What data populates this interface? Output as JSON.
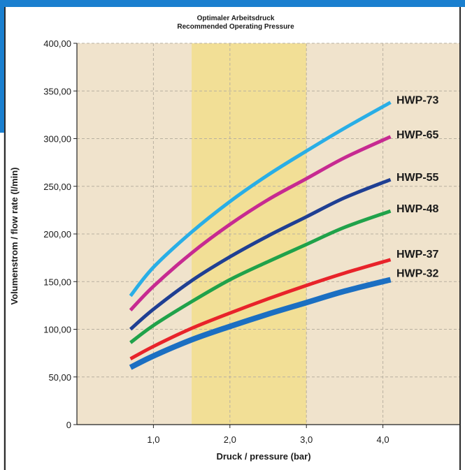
{
  "chart_data": {
    "type": "line",
    "title": "Optimaler Arbeitsdruck",
    "subtitle": "Recommended Operating Pressure",
    "xlabel": "Druck / pressure (bar)",
    "ylabel": "Volumenstrom / flow rate (l/min)",
    "xlim": [
      0,
      5.0
    ],
    "ylim": [
      0,
      400
    ],
    "x_ticks": [
      1.0,
      2.0,
      3.0,
      4.0
    ],
    "x_tick_labels": [
      "1,0",
      "2,0",
      "3,0",
      "4,0"
    ],
    "y_ticks": [
      0,
      50,
      100,
      150,
      200,
      250,
      300,
      350,
      400
    ],
    "y_tick_labels": [
      "0",
      "50,00",
      "100,00",
      "150,00",
      "200,00",
      "250,00",
      "300,00",
      "350,00",
      "400,00"
    ],
    "grid": true,
    "highlight_band": {
      "x_range": [
        1.5,
        3.0
      ],
      "color": "#f2df96"
    },
    "background_color": "#f0e3cc",
    "series": [
      {
        "name": "HWP-73",
        "color": "#29aee6",
        "width": 5,
        "x": [
          0.7,
          1.0,
          1.5,
          2.0,
          2.5,
          3.0,
          3.5,
          4.1
        ],
        "y": [
          135,
          165,
          202,
          234,
          262,
          287,
          311,
          338
        ]
      },
      {
        "name": "HWP-65",
        "color": "#c72a91",
        "width": 5,
        "x": [
          0.7,
          1.0,
          1.5,
          2.0,
          2.5,
          3.0,
          3.5,
          4.1
        ],
        "y": [
          120,
          145,
          180,
          210,
          236,
          258,
          280,
          302
        ]
      },
      {
        "name": "HWP-55",
        "color": "#1f3f93",
        "width": 5,
        "x": [
          0.7,
          1.0,
          1.5,
          2.0,
          2.5,
          3.0,
          3.5,
          4.1
        ],
        "y": [
          100,
          121,
          151,
          176,
          198,
          218,
          238,
          257
        ]
      },
      {
        "name": "HWP-48",
        "color": "#20a24a",
        "width": 5,
        "x": [
          0.7,
          1.0,
          1.5,
          2.0,
          2.5,
          3.0,
          3.5,
          4.1
        ],
        "y": [
          86,
          104,
          129,
          152,
          171,
          189,
          207,
          224
        ]
      },
      {
        "name": "HWP-37",
        "color": "#e8232a",
        "width": 5,
        "x": [
          0.7,
          1.0,
          1.5,
          2.0,
          2.5,
          3.0,
          3.5,
          4.1
        ],
        "y": [
          69,
          82,
          101,
          117,
          132,
          146,
          159,
          173
        ]
      },
      {
        "name": "HWP-32",
        "color": "#1b6fc2",
        "width": 8,
        "x": [
          0.7,
          1.0,
          1.5,
          2.0,
          2.5,
          3.0,
          3.5,
          4.1
        ],
        "y": [
          60,
          72,
          89,
          103,
          116,
          128,
          140,
          152
        ]
      }
    ]
  }
}
